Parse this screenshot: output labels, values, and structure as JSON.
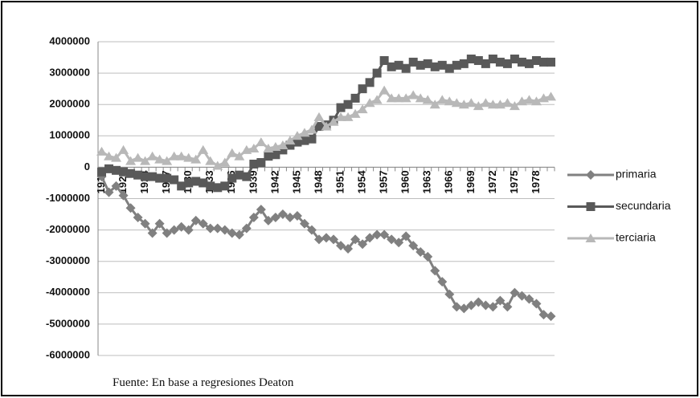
{
  "chart_data": {
    "type": "line",
    "categories": [
      "1918",
      null,
      null,
      "1921",
      null,
      null,
      "1924",
      null,
      null,
      "1927",
      null,
      null,
      "1930",
      null,
      null,
      "1933",
      null,
      null,
      "1936",
      null,
      null,
      "1939",
      null,
      null,
      "1942",
      null,
      null,
      "1945",
      null,
      null,
      "1948",
      null,
      null,
      "1951",
      null,
      null,
      "1954",
      null,
      null,
      "1957",
      null,
      null,
      "1960",
      null,
      null,
      "1963",
      null,
      null,
      "1966",
      null,
      null,
      "1969",
      null,
      null,
      "1972",
      null,
      null,
      "1975",
      null,
      null,
      "1978",
      null,
      null
    ],
    "series": [
      {
        "name": "primaria",
        "color": "#808080",
        "marker": "diamond",
        "values": [
          -300000,
          -800000,
          -600000,
          -900000,
          -1300000,
          -1600000,
          -1800000,
          -2100000,
          -1800000,
          -2100000,
          -2000000,
          -1900000,
          -2000000,
          -1700000,
          -1800000,
          -1950000,
          -1950000,
          -2000000,
          -2100000,
          -2150000,
          -1950000,
          -1600000,
          -1350000,
          -1700000,
          -1600000,
          -1500000,
          -1600000,
          -1550000,
          -1800000,
          -2000000,
          -2300000,
          -2250000,
          -2300000,
          -2500000,
          -2600000,
          -2300000,
          -2450000,
          -2250000,
          -2150000,
          -2150000,
          -2300000,
          -2400000,
          -2200000,
          -2500000,
          -2700000,
          -2850000,
          -3300000,
          -3650000,
          -4050000,
          -4450000,
          -4500000,
          -4400000,
          -4300000,
          -4400000,
          -4450000,
          -4250000,
          -4450000,
          -4000000,
          -4100000,
          -4200000,
          -4350000,
          -4700000,
          -4750000
        ]
      },
      {
        "name": "secundaria",
        "color": "#595959",
        "marker": "square",
        "values": [
          -150000,
          -50000,
          -100000,
          -150000,
          -200000,
          -250000,
          -300000,
          -300000,
          -350000,
          -350000,
          -400000,
          -600000,
          -500000,
          -450000,
          -500000,
          -600000,
          -650000,
          -600000,
          -350000,
          -250000,
          -300000,
          100000,
          150000,
          350000,
          400000,
          550000,
          700000,
          800000,
          850000,
          900000,
          1300000,
          1350000,
          1500000,
          1900000,
          2000000,
          2200000,
          2500000,
          2700000,
          3000000,
          3400000,
          3200000,
          3250000,
          3150000,
          3350000,
          3250000,
          3300000,
          3200000,
          3250000,
          3150000,
          3250000,
          3300000,
          3450000,
          3400000,
          3300000,
          3450000,
          3350000,
          3300000,
          3450000,
          3350000,
          3300000,
          3400000,
          3350000,
          3350000
        ]
      },
      {
        "name": "terciaria",
        "color": "#b8b8b8",
        "marker": "triangle",
        "values": [
          500000,
          350000,
          300000,
          550000,
          200000,
          300000,
          200000,
          350000,
          250000,
          200000,
          350000,
          350000,
          300000,
          250000,
          550000,
          200000,
          50000,
          150000,
          450000,
          350000,
          550000,
          600000,
          800000,
          600000,
          650000,
          700000,
          850000,
          1000000,
          1100000,
          1200000,
          1600000,
          1300000,
          1450000,
          1600000,
          1600000,
          1700000,
          1850000,
          2050000,
          2150000,
          2450000,
          2200000,
          2200000,
          2200000,
          2300000,
          2200000,
          2150000,
          2000000,
          2150000,
          2100000,
          2050000,
          2000000,
          2050000,
          1950000,
          2050000,
          2000000,
          2000000,
          2050000,
          1950000,
          2100000,
          2150000,
          2100000,
          2200000,
          2250000
        ]
      }
    ],
    "ylim": [
      -6000000,
      4000000
    ],
    "yticks": [
      4000000,
      3000000,
      2000000,
      1000000,
      0,
      -1000000,
      -2000000,
      -3000000,
      -4000000,
      -5000000,
      -6000000
    ],
    "grid": true,
    "legend": "right",
    "source": "Fuente: En base a regresiones Deaton"
  }
}
